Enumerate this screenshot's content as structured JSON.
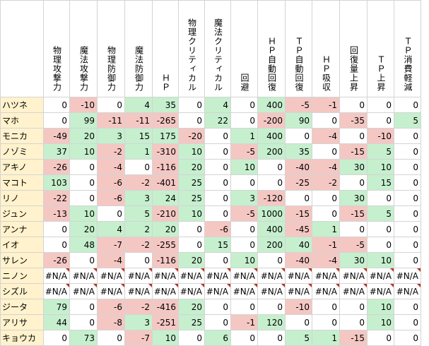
{
  "headers": [
    "物理攻撃力",
    "魔法攻撃力",
    "物理防御力",
    "魔法防御力",
    "ＨＰ",
    "物理クリティカル",
    "魔法クリティカル",
    "回避",
    "ＨＰ自動回復",
    "ＴＰ自動回復",
    "ＨＰ吸収",
    "回復量上昇",
    "ＴＰ上昇",
    "ＴＰ消費軽減"
  ],
  "rows": [
    {
      "name": "ハツネ",
      "values": [
        "0",
        "-10",
        "0",
        "4",
        "35",
        "0",
        "4",
        "0",
        "400",
        "-5",
        "-1",
        "0",
        "0",
        "0"
      ]
    },
    {
      "name": "マホ",
      "values": [
        "0",
        "99",
        "-11",
        "-11",
        "-265",
        "0",
        "22",
        "0",
        "-200",
        "90",
        "0",
        "-35",
        "0",
        "5"
      ]
    },
    {
      "name": "モニカ",
      "values": [
        "-49",
        "20",
        "3",
        "15",
        "175",
        "-20",
        "0",
        "1",
        "400",
        "0",
        "-4",
        "0",
        "-10",
        "0"
      ]
    },
    {
      "name": "ノゾミ",
      "values": [
        "37",
        "10",
        "-2",
        "1",
        "-310",
        "10",
        "0",
        "-5",
        "200",
        "35",
        "0",
        "-15",
        "5",
        "0"
      ]
    },
    {
      "name": "アキノ",
      "values": [
        "-26",
        "0",
        "-4",
        "0",
        "-116",
        "20",
        "0",
        "10",
        "0",
        "-40",
        "-4",
        "30",
        "10",
        "0"
      ]
    },
    {
      "name": "マコト",
      "values": [
        "103",
        "0",
        "-6",
        "-2",
        "-401",
        "25",
        "0",
        "0",
        "0",
        "-25",
        "-2",
        "0",
        "15",
        "0"
      ]
    },
    {
      "name": "リノ",
      "values": [
        "-22",
        "0",
        "-6",
        "3",
        "24",
        "25",
        "0",
        "3",
        "-120",
        "0",
        "0",
        "30",
        "0",
        "0"
      ]
    },
    {
      "name": "ジュン",
      "values": [
        "-13",
        "10",
        "0",
        "5",
        "-210",
        "10",
        "0",
        "-5",
        "1000",
        "-15",
        "0",
        "-15",
        "5",
        "0"
      ]
    },
    {
      "name": "アンナ",
      "values": [
        "0",
        "20",
        "4",
        "2",
        "20",
        "0",
        "-6",
        "0",
        "400",
        "-45",
        "1",
        "0",
        "0",
        "0"
      ]
    },
    {
      "name": "イオ",
      "values": [
        "0",
        "48",
        "-7",
        "-2",
        "-255",
        "0",
        "15",
        "0",
        "200",
        "40",
        "-1",
        "-5",
        "0",
        "0"
      ]
    },
    {
      "name": "サレン",
      "values": [
        "-26",
        "0",
        "-4",
        "0",
        "-116",
        "20",
        "0",
        "10",
        "0",
        "-40",
        "-4",
        "30",
        "10",
        "0"
      ]
    },
    {
      "name": "ニノン",
      "values": [
        "#N/A",
        "#N/A",
        "#N/A",
        "#N/A",
        "#N/A",
        "#N/A",
        "#N/A",
        "#N/A",
        "#N/A",
        "#N/A",
        "#N/A",
        "#N/A",
        "#N/A",
        "#N/A"
      ]
    },
    {
      "name": "シズル",
      "values": [
        "#N/A",
        "#N/A",
        "#N/A",
        "#N/A",
        "#N/A",
        "#N/A",
        "#N/A",
        "#N/A",
        "#N/A",
        "#N/A",
        "#N/A",
        "#N/A",
        "#N/A",
        "#N/A"
      ]
    },
    {
      "name": "ジータ",
      "values": [
        "79",
        "0",
        "-6",
        "-2",
        "-416",
        "20",
        "0",
        "0",
        "0",
        "-10",
        "0",
        "0",
        "10",
        "0"
      ]
    },
    {
      "name": "アリサ",
      "values": [
        "44",
        "0",
        "-8",
        "3",
        "-251",
        "25",
        "0",
        "-1",
        "120",
        "0",
        "0",
        "0",
        "10",
        "0"
      ]
    },
    {
      "name": "キョウカ",
      "values": [
        "0",
        "73",
        "0",
        "-7",
        "10",
        "0",
        "6",
        "0",
        "0",
        "5",
        "1",
        "-15",
        "0",
        "0"
      ]
    }
  ],
  "colors": {
    "positive": "#c6efce",
    "negative": "#f4c7c3",
    "name_fill": "#fff2cc",
    "na_marker": "#b7331c"
  }
}
